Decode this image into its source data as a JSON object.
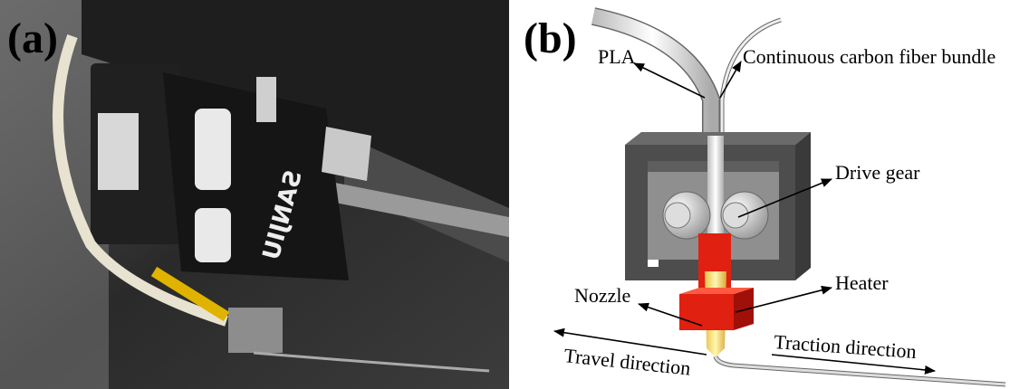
{
  "panel_a": {
    "label": "(a)",
    "printed_text": "SANJIU"
  },
  "panel_b": {
    "label": "(b)",
    "labels": {
      "pla": "PLA",
      "fiber": "Continuous carbon fiber bundle",
      "gear": "Drive gear",
      "heater": "Heater",
      "nozzle": "Nozzle",
      "travel": "Travel direction",
      "traction": "Traction direction"
    }
  }
}
